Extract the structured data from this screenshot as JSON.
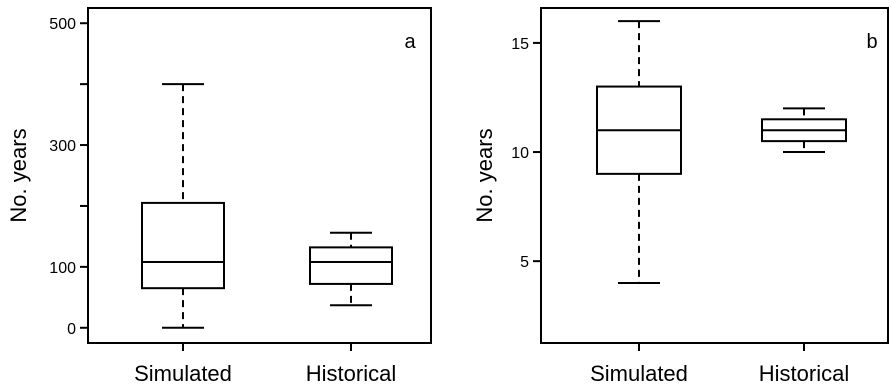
{
  "chart_data": [
    {
      "type": "boxplot",
      "panel_label": "a",
      "ylabel": "No. years",
      "categories": [
        "Simulated",
        "Historical"
      ],
      "yticks": [
        0,
        100,
        200,
        300,
        400,
        500
      ],
      "ytick_labels": [
        "0",
        "100",
        "",
        "300",
        "",
        "500"
      ],
      "ylim": [
        -25,
        525
      ],
      "boxes": [
        {
          "category": "Simulated",
          "min": 0,
          "q1": 65,
          "median": 108,
          "q3": 205,
          "max": 400
        },
        {
          "category": "Historical",
          "min": 37,
          "q1": 72,
          "median": 108,
          "q3": 132,
          "max": 156
        }
      ]
    },
    {
      "type": "boxplot",
      "panel_label": "b",
      "ylabel": "No. years",
      "categories": [
        "Simulated",
        "Historical"
      ],
      "yticks": [
        5,
        10,
        15
      ],
      "ytick_labels": [
        "5",
        "10",
        "15"
      ],
      "ylim": [
        1.25,
        16.6
      ],
      "boxes": [
        {
          "category": "Simulated",
          "min": 4,
          "q1": 9,
          "median": 11,
          "q3": 13,
          "max": 16
        },
        {
          "category": "Historical",
          "min": 10,
          "q1": 10.5,
          "median": 11,
          "q3": 11.5,
          "max": 12
        }
      ]
    }
  ]
}
